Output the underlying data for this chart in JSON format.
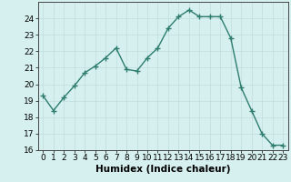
{
  "x": [
    0,
    1,
    2,
    3,
    4,
    5,
    6,
    7,
    8,
    9,
    10,
    11,
    12,
    13,
    14,
    15,
    16,
    17,
    18,
    19,
    20,
    21,
    22,
    23
  ],
  "y": [
    19.3,
    18.4,
    19.2,
    19.9,
    20.7,
    21.1,
    21.6,
    22.2,
    20.9,
    20.8,
    21.6,
    22.2,
    23.4,
    24.1,
    24.5,
    24.1,
    24.1,
    24.1,
    22.8,
    19.8,
    18.4,
    17.0,
    16.3,
    16.3
  ],
  "line_color": "#2e7d6e",
  "marker": "+",
  "marker_size": 4,
  "bg_color": "#d6f0ef",
  "grid_color": "#c0dedd",
  "xlabel": "Humidex (Indice chaleur)",
  "ylabel": "",
  "ylim": [
    16,
    25
  ],
  "xlim": [
    -0.5,
    23.5
  ],
  "yticks": [
    16,
    17,
    18,
    19,
    20,
    21,
    22,
    23,
    24
  ],
  "xticks": [
    0,
    1,
    2,
    3,
    4,
    5,
    6,
    7,
    8,
    9,
    10,
    11,
    12,
    13,
    14,
    15,
    16,
    17,
    18,
    19,
    20,
    21,
    22,
    23
  ],
  "tick_fontsize": 6.5,
  "label_fontsize": 7.5,
  "line_width": 1.0
}
